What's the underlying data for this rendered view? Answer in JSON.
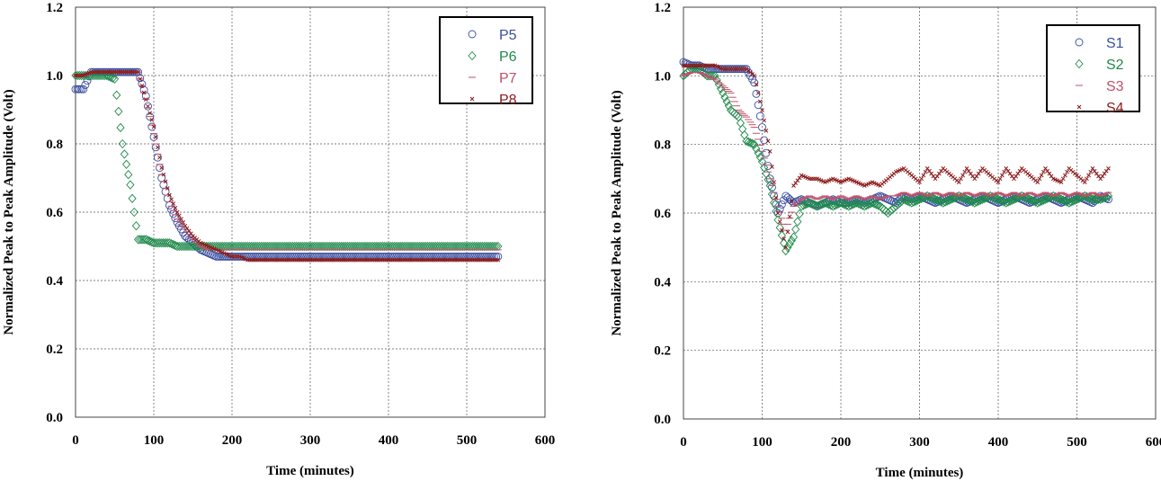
{
  "chart_data": [
    {
      "type": "scatter",
      "title": "",
      "xlabel": "Time (minutes)",
      "ylabel": "Normalized Peak to Peak Amplitude (Volt)",
      "xlim": [
        0,
        600
      ],
      "ylim": [
        0,
        1.2
      ],
      "xticks": [
        "0",
        "100",
        "200",
        "300",
        "400",
        "500",
        "600"
      ],
      "yticks": [
        "0.0",
        "0.2",
        "0.4",
        "0.6",
        "0.8",
        "1.0",
        "1.2"
      ],
      "grid": true,
      "legend_position": "top-right",
      "x_start": 0,
      "x_step": 10,
      "series": [
        {
          "name": "P5",
          "marker": "circle",
          "color": "#3a4fa0",
          "y": [
            0.96,
            0.96,
            1.01,
            1.01,
            1.01,
            1.01,
            1.01,
            1.01,
            1.01,
            0.94,
            0.82,
            0.7,
            0.62,
            0.57,
            0.53,
            0.51,
            0.49,
            0.48,
            0.47,
            0.47,
            0.47,
            0.47,
            0.47,
            0.47,
            0.47,
            0.47,
            0.47,
            0.47,
            0.47,
            0.47,
            0.47,
            0.47,
            0.47,
            0.47,
            0.47,
            0.47,
            0.47,
            0.47,
            0.47,
            0.47,
            0.47,
            0.47,
            0.47,
            0.47,
            0.47,
            0.47,
            0.47,
            0.47,
            0.47,
            0.47,
            0.47,
            0.47,
            0.47,
            0.47,
            0.47
          ]
        },
        {
          "name": "P6",
          "marker": "diamond",
          "color": "#1f8a4c",
          "y": [
            1.0,
            1.0,
            1.0,
            1.0,
            1.0,
            0.99,
            0.8,
            0.68,
            0.52,
            0.52,
            0.51,
            0.51,
            0.51,
            0.5,
            0.5,
            0.5,
            0.5,
            0.5,
            0.5,
            0.5,
            0.5,
            0.5,
            0.5,
            0.5,
            0.5,
            0.5,
            0.5,
            0.5,
            0.5,
            0.5,
            0.5,
            0.5,
            0.5,
            0.5,
            0.5,
            0.5,
            0.5,
            0.5,
            0.5,
            0.5,
            0.5,
            0.5,
            0.5,
            0.5,
            0.5,
            0.5,
            0.5,
            0.5,
            0.5,
            0.5,
            0.5,
            0.5,
            0.5,
            0.5,
            0.5
          ]
        },
        {
          "name": "P7",
          "marker": "dash",
          "color": "#c0506a",
          "y": [
            1.0,
            1.0,
            1.01,
            1.01,
            1.01,
            1.01,
            1.01,
            1.01,
            1.01,
            0.93,
            0.83,
            0.71,
            0.63,
            0.58,
            0.55,
            0.52,
            0.5,
            0.49,
            0.49,
            0.49,
            0.49,
            0.49,
            0.49,
            0.49,
            0.49,
            0.49,
            0.49,
            0.49,
            0.49,
            0.49,
            0.49,
            0.49,
            0.49,
            0.49,
            0.49,
            0.49,
            0.49,
            0.49,
            0.49,
            0.49,
            0.49,
            0.49,
            0.49,
            0.49,
            0.49,
            0.49,
            0.49,
            0.49,
            0.49,
            0.49,
            0.49,
            0.49,
            0.49,
            0.49,
            0.49
          ]
        },
        {
          "name": "P8",
          "marker": "x",
          "color": "#8b1a1a",
          "y": [
            1.0,
            1.0,
            1.01,
            1.01,
            1.01,
            1.01,
            1.01,
            1.01,
            1.01,
            0.93,
            0.85,
            0.73,
            0.65,
            0.6,
            0.56,
            0.53,
            0.51,
            0.5,
            0.49,
            0.48,
            0.47,
            0.47,
            0.46,
            0.46,
            0.46,
            0.46,
            0.46,
            0.46,
            0.46,
            0.46,
            0.46,
            0.46,
            0.46,
            0.46,
            0.46,
            0.46,
            0.46,
            0.46,
            0.46,
            0.46,
            0.46,
            0.46,
            0.46,
            0.46,
            0.46,
            0.46,
            0.46,
            0.46,
            0.46,
            0.46,
            0.46,
            0.46,
            0.46,
            0.46,
            0.46
          ]
        }
      ]
    },
    {
      "type": "scatter",
      "title": "",
      "xlabel": "Time (minutes)",
      "ylabel": "Normalized Peak to Peak Amplitude (Volt)",
      "xlim": [
        0,
        600
      ],
      "ylim": [
        0,
        1.2
      ],
      "xticks": [
        "0",
        "100",
        "200",
        "300",
        "400",
        "500",
        "600"
      ],
      "yticks": [
        "0.0",
        "0.2",
        "0.4",
        "0.6",
        "0.8",
        "1.0",
        "1.2"
      ],
      "grid": true,
      "legend_position": "top-right",
      "x_start": 0,
      "x_step": 10,
      "series": [
        {
          "name": "S1",
          "marker": "circle",
          "color": "#3a4fa0",
          "y": [
            1.04,
            1.03,
            1.03,
            1.02,
            1.02,
            1.02,
            1.02,
            1.02,
            1.02,
            0.98,
            0.85,
            0.7,
            0.6,
            0.65,
            0.63,
            0.64,
            0.63,
            0.62,
            0.63,
            0.64,
            0.63,
            0.63,
            0.64,
            0.63,
            0.64,
            0.65,
            0.64,
            0.63,
            0.65,
            0.64,
            0.65,
            0.64,
            0.63,
            0.64,
            0.65,
            0.64,
            0.63,
            0.64,
            0.65,
            0.64,
            0.63,
            0.64,
            0.65,
            0.64,
            0.63,
            0.64,
            0.65,
            0.64,
            0.63,
            0.64,
            0.65,
            0.64,
            0.63,
            0.65,
            0.64
          ]
        },
        {
          "name": "S2",
          "marker": "diamond",
          "color": "#1f8a4c",
          "y": [
            1.0,
            1.02,
            1.02,
            1.0,
            1.0,
            0.95,
            0.9,
            0.88,
            0.81,
            0.8,
            0.75,
            0.68,
            0.58,
            0.49,
            0.53,
            0.62,
            0.63,
            0.62,
            0.63,
            0.62,
            0.63,
            0.62,
            0.63,
            0.62,
            0.63,
            0.62,
            0.6,
            0.62,
            0.64,
            0.63,
            0.64,
            0.65,
            0.64,
            0.63,
            0.64,
            0.65,
            0.64,
            0.63,
            0.64,
            0.65,
            0.64,
            0.63,
            0.64,
            0.65,
            0.64,
            0.63,
            0.64,
            0.65,
            0.64,
            0.63,
            0.64,
            0.65,
            0.64,
            0.64,
            0.65
          ]
        },
        {
          "name": "S3",
          "marker": "dash",
          "color": "#c0506a",
          "y": [
            1.0,
            1.01,
            1.01,
            1.0,
            0.99,
            0.97,
            0.95,
            0.9,
            0.88,
            0.85,
            0.78,
            0.7,
            0.62,
            0.55,
            0.62,
            0.64,
            0.65,
            0.64,
            0.65,
            0.64,
            0.65,
            0.64,
            0.65,
            0.64,
            0.65,
            0.64,
            0.65,
            0.65,
            0.66,
            0.65,
            0.66,
            0.65,
            0.66,
            0.65,
            0.66,
            0.65,
            0.66,
            0.65,
            0.66,
            0.65,
            0.66,
            0.65,
            0.66,
            0.65,
            0.66,
            0.65,
            0.66,
            0.65,
            0.66,
            0.65,
            0.66,
            0.65,
            0.66,
            0.65,
            0.66
          ]
        },
        {
          "name": "S4",
          "marker": "x",
          "color": "#8b1a1a",
          "y": [
            1.03,
            1.03,
            1.03,
            1.03,
            1.03,
            1.02,
            1.02,
            1.02,
            1.02,
            1.0,
            0.9,
            0.78,
            0.6,
            0.5,
            0.68,
            0.71,
            0.7,
            0.7,
            0.69,
            0.7,
            0.69,
            0.7,
            0.69,
            0.68,
            0.69,
            0.68,
            0.7,
            0.72,
            0.73,
            0.71,
            0.69,
            0.73,
            0.7,
            0.73,
            0.71,
            0.69,
            0.73,
            0.7,
            0.73,
            0.71,
            0.69,
            0.73,
            0.7,
            0.73,
            0.71,
            0.69,
            0.73,
            0.7,
            0.69,
            0.73,
            0.71,
            0.69,
            0.73,
            0.7,
            0.73
          ]
        }
      ]
    }
  ]
}
